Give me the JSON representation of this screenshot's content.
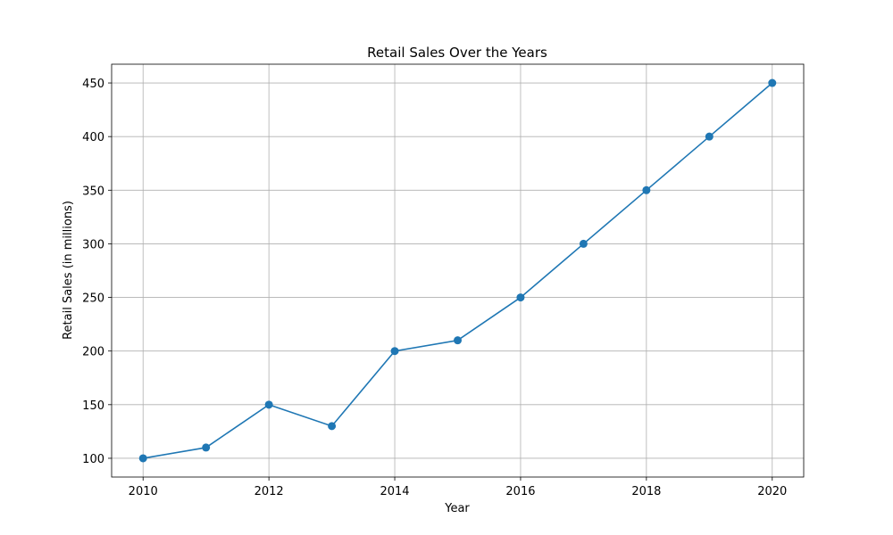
{
  "chart_data": {
    "type": "line",
    "title": "Retail Sales Over the Years",
    "xlabel": "Year",
    "ylabel": "Retail Sales (in millions)",
    "x": [
      2010,
      2011,
      2012,
      2013,
      2014,
      2015,
      2016,
      2017,
      2018,
      2019,
      2020
    ],
    "series": [
      {
        "values": [
          100,
          110,
          150,
          130,
          200,
          210,
          250,
          300,
          350,
          400,
          450
        ],
        "color": "#1f77b4",
        "marker": "circle"
      }
    ],
    "xlim": [
      2009.5,
      2020.5
    ],
    "ylim": [
      82.5,
      467.5
    ],
    "xticks": [
      2010,
      2012,
      2014,
      2016,
      2018,
      2020
    ],
    "yticks": [
      100,
      150,
      200,
      250,
      300,
      350,
      400,
      450
    ],
    "grid": true,
    "legend": "none"
  }
}
